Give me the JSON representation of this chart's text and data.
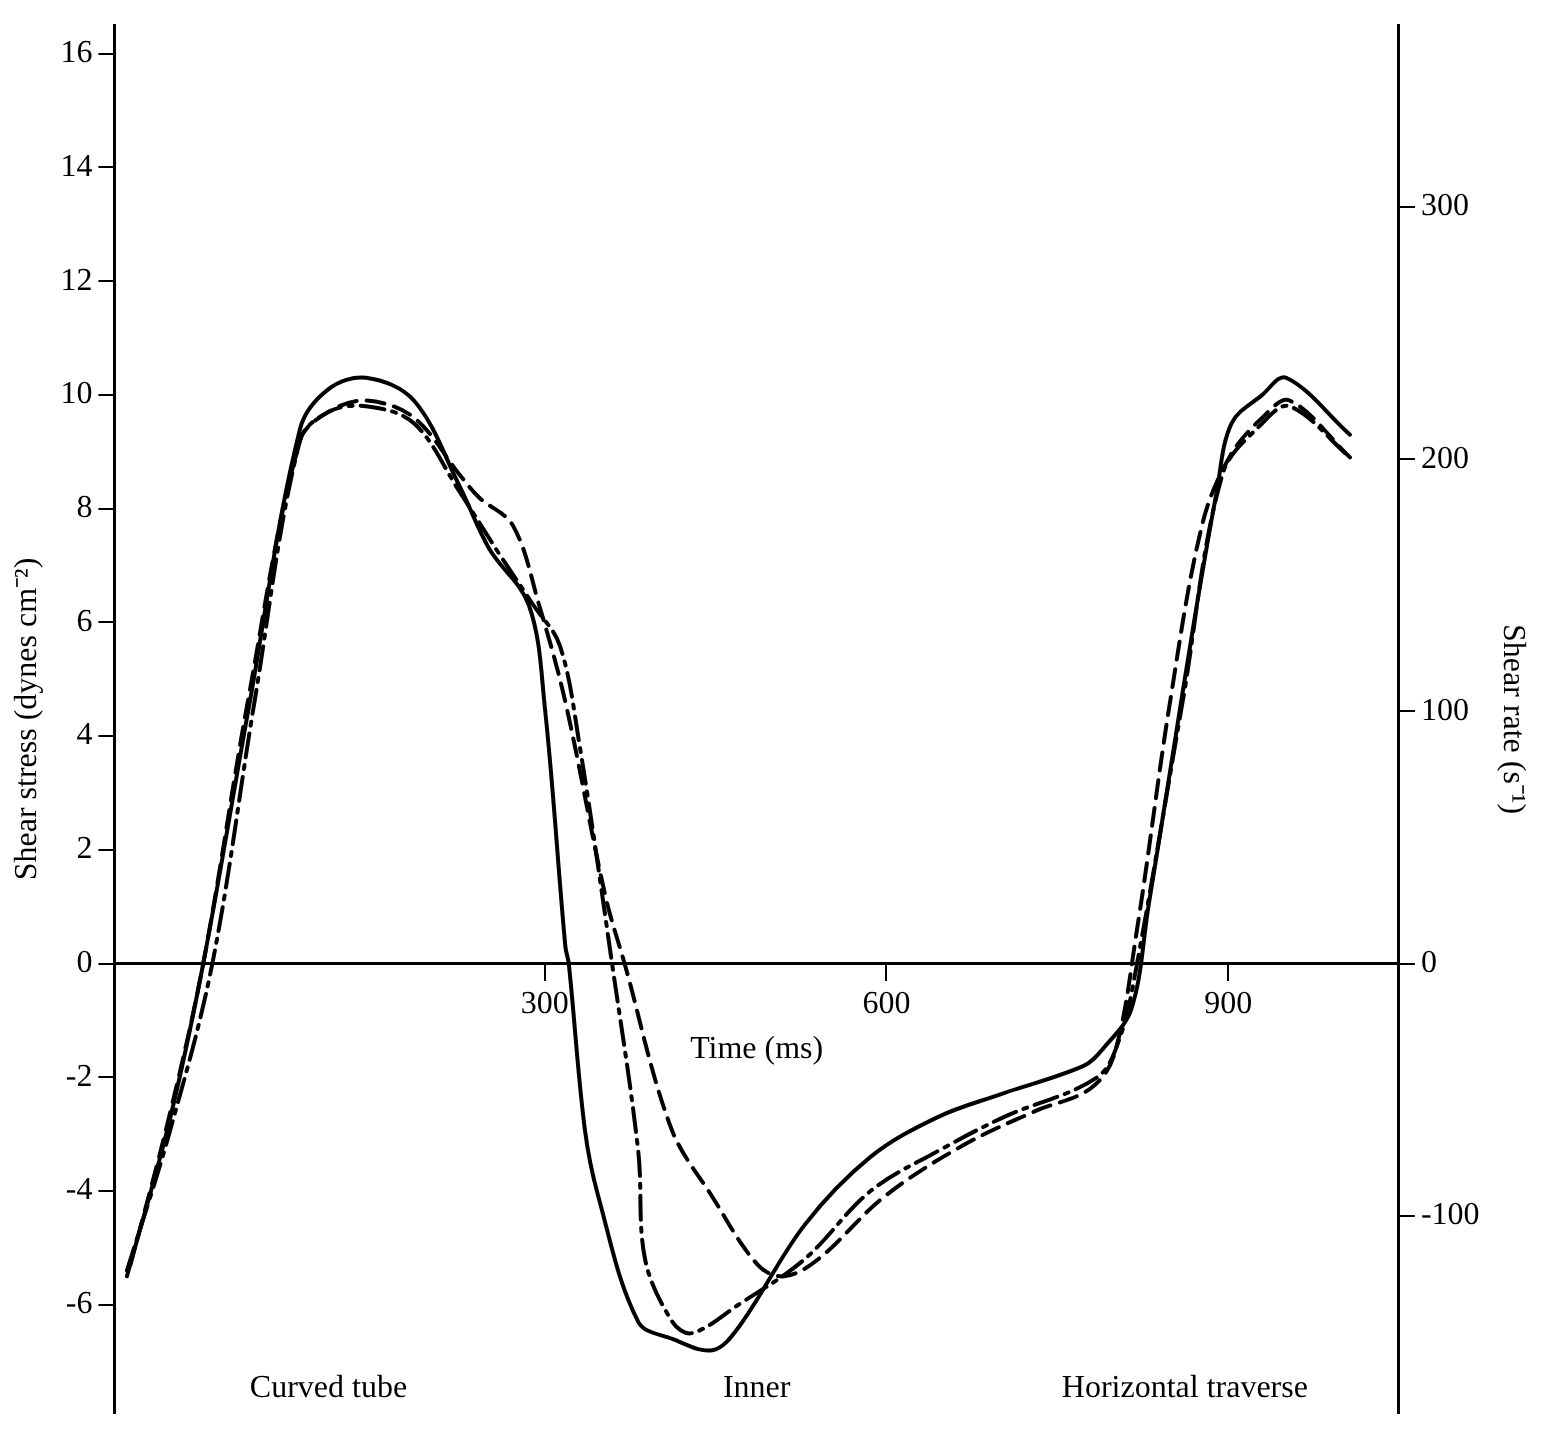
{
  "chart_data": {
    "type": "line",
    "xlabel": "Time (ms)",
    "ylabel": "Shear stress (dynes cm⁻²)",
    "y2label": "Shear rate (s⁻¹)",
    "xlim": [
      -78,
      1050
    ],
    "xticks": [
      300,
      600,
      900
    ],
    "ylim": [
      -7.9,
      16.5
    ],
    "yticks": [
      -6,
      -4,
      -2,
      0,
      2,
      4,
      6,
      8,
      10,
      12,
      14,
      16
    ],
    "y2lim": [
      -178,
      372
    ],
    "y2ticks": [
      -100,
      0,
      100,
      200,
      300
    ],
    "grid": false,
    "legend": false,
    "marker": "none",
    "annotations": [
      "Curved tube",
      "Inner",
      "Horizontal traverse"
    ],
    "series": [
      {
        "color": "#000000",
        "line_style": "solid",
        "x": [
          -67,
          -30,
          0,
          40,
          85,
          110,
          143,
          185,
          225,
          251,
          286,
          300,
          318,
          321,
          335,
          347,
          382,
          412,
          447,
          470,
          528,
          586,
          645,
          700,
          773,
          790,
          815,
          830,
          850,
          870,
          890,
          903,
          930,
          951,
          1007
        ],
        "values": [
          -5.5,
          -2.8,
          0,
          4.5,
          9.4,
          10.1,
          10.3,
          9.9,
          8.4,
          7.3,
          6.3,
          4.5,
          0.3,
          0,
          -2.9,
          -4.1,
          -6.3,
          -6.6,
          -6.8,
          -6.4,
          -4.6,
          -3.4,
          -2.7,
          -2.3,
          -1.8,
          -1.5,
          -0.8,
          1,
          3.5,
          6,
          8.3,
          9.5,
          10,
          10.3,
          9.3
        ]
      },
      {
        "color": "#000000",
        "line_style": "dashed",
        "x": [
          -64,
          -30,
          0,
          40,
          85,
          110,
          143,
          185,
          225,
          242,
          272,
          295,
          318,
          353,
          370,
          411,
          447,
          487,
          510,
          540,
          598,
          667,
          730,
          779,
          800,
          820,
          849,
          877,
          901,
          930,
          954,
          1007
        ],
        "values": [
          -5.3,
          -2.7,
          0,
          4.7,
          9.2,
          9.7,
          9.9,
          9.6,
          8.6,
          8.2,
          7.7,
          6.3,
          4.6,
          1.2,
          0,
          -2.9,
          -4.1,
          -5.3,
          -5.5,
          -5.2,
          -4.1,
          -3.2,
          -2.6,
          -2.2,
          -1.6,
          0.6,
          4.6,
          7.7,
          8.9,
          9.6,
          9.9,
          8.9
        ]
      },
      {
        "color": "#000000",
        "line_style": "dashdot",
        "x": [
          -67,
          -30,
          8,
          45,
          85,
          110,
          143,
          185,
          225,
          260,
          290,
          313,
          330,
          359,
          382,
          388,
          412,
          429,
          470,
          528,
          586,
          645,
          703,
          785,
          805,
          820,
          860,
          895,
          930,
          954,
          1007
        ],
        "values": [
          -5.4,
          -3,
          0,
          4.6,
          9.2,
          9.7,
          9.8,
          9.5,
          8.3,
          7.2,
          6.3,
          5.6,
          3.9,
          0,
          -3.3,
          -5.2,
          -6.3,
          -6.5,
          -6,
          -5.2,
          -4,
          -3.3,
          -2.7,
          -2,
          -1.3,
          0,
          4.6,
          8.6,
          9.5,
          9.8,
          8.9
        ]
      }
    ]
  }
}
